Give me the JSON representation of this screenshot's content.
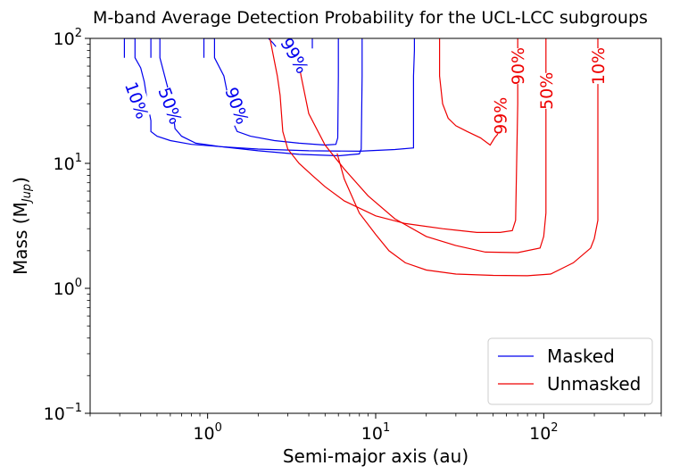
{
  "chart_data": {
    "type": "line",
    "title": "M-band Average Detection Probability for the UCL-LCC subgroups",
    "xlabel": "Semi-major axis (au)",
    "ylabel_main": "Mass (M",
    "ylabel_sub": "Jup",
    "ylabel_close": ")",
    "xscale": "log",
    "yscale": "log",
    "xlim": [
      0.2,
      500
    ],
    "ylim": [
      0.1,
      100
    ],
    "xticks": [
      {
        "value": 1,
        "base": "10",
        "exp": "0"
      },
      {
        "value": 10,
        "base": "10",
        "exp": "1"
      },
      {
        "value": 100,
        "base": "10",
        "exp": "2"
      }
    ],
    "yticks": [
      {
        "value": 0.1,
        "base": "10",
        "exp": "−1"
      },
      {
        "value": 1,
        "base": "10",
        "exp": "0"
      },
      {
        "value": 10,
        "base": "10",
        "exp": "1"
      },
      {
        "value": 100,
        "base": "10",
        "exp": "2"
      }
    ],
    "legend": {
      "placement": "lower-right",
      "entries": [
        {
          "label": "Masked",
          "color": "#0000ee"
        },
        {
          "label": "Unmasked",
          "color": "#ee0000"
        }
      ]
    },
    "series": [
      {
        "name": "Masked",
        "level": "10%",
        "color": "#0000ee",
        "label_at": [
          0.38,
          32
        ],
        "label_angle": 70,
        "x": [
          0.32,
          0.32,
          0.37,
          0.37,
          0.4,
          0.42,
          0.44,
          0.46,
          0.46,
          0.5,
          0.6,
          0.8,
          1.2,
          2.0,
          4.0,
          8.0,
          13.0,
          16.8,
          16.8,
          17.0,
          17.0
        ],
        "y": [
          70,
          100,
          100,
          70,
          58,
          45,
          30,
          22,
          18,
          16.5,
          15.2,
          14.2,
          13.6,
          13.0,
          12.6,
          12.5,
          12.9,
          13.3,
          50,
          80,
          100
        ]
      },
      {
        "name": "Masked",
        "level": "50%",
        "color": "#0000ee",
        "label_at": [
          0.6,
          29
        ],
        "label_angle": 70,
        "x": [
          0.46,
          0.46,
          0.52,
          0.52,
          0.58,
          0.62,
          0.64,
          0.7,
          0.85,
          1.2,
          2.0,
          3.5,
          6.0,
          8.0,
          8.2,
          8.3,
          8.3
        ],
        "y": [
          70,
          100,
          100,
          70,
          40,
          28,
          19,
          16.5,
          14.5,
          13.6,
          12.6,
          11.8,
          11.5,
          11.9,
          13,
          50,
          100
        ]
      },
      {
        "name": "Masked",
        "level": "90%",
        "color": "#0000ee",
        "label_at": [
          1.5,
          29
        ],
        "label_angle": 70,
        "x": [
          0.95,
          0.95,
          1.1,
          1.1,
          1.25,
          1.35,
          1.4,
          1.5,
          1.8,
          2.5,
          3.5,
          5.0,
          5.8,
          5.95,
          6.0,
          6.0
        ],
        "y": [
          70,
          100,
          100,
          70,
          50,
          30,
          22,
          18,
          16.5,
          15.2,
          14.5,
          14.0,
          14.2,
          16,
          50,
          100
        ]
      },
      {
        "name": "Masked",
        "level": "99%",
        "color": "#0000ee",
        "label_at": [
          3.3,
          73
        ],
        "label_angle": 60,
        "x": [
          2.3,
          2.45,
          2.55
        ],
        "y": [
          100,
          92,
          86
        ]
      },
      {
        "name": "Masked",
        "level": "99% (right)",
        "color": "#0000ee",
        "label_at": null,
        "label_angle": 0,
        "x": [
          4.2,
          4.2
        ],
        "y": [
          83,
          100
        ]
      },
      {
        "name": "Unmasked",
        "level": "10%",
        "color": "#ee0000",
        "label_at": [
          210,
          60
        ],
        "label_angle": -90,
        "x": [
          5.9,
          6.5,
          8.0,
          10.0,
          12.0,
          15.0,
          20.0,
          30.0,
          50.0,
          80.0,
          110.0,
          150.0,
          190.0,
          200.0,
          210.0,
          210.0,
          210.0
        ],
        "y": [
          12,
          7.5,
          4.0,
          2.7,
          2.0,
          1.6,
          1.4,
          1.3,
          1.27,
          1.26,
          1.3,
          1.6,
          2.1,
          2.5,
          3.5,
          30,
          100
        ]
      },
      {
        "name": "Unmasked",
        "level": "50%",
        "color": "#ee0000",
        "label_at": [
          103,
          38
        ],
        "label_angle": -90,
        "x": [
          3.3,
          3.6,
          4.0,
          5.0,
          6.5,
          9.0,
          13.0,
          20.0,
          30.0,
          45.0,
          70.0,
          95.0,
          100.0,
          103.0,
          103.0,
          103.0
        ],
        "y": [
          100,
          50,
          25,
          14,
          9,
          5.5,
          3.6,
          2.6,
          2.2,
          1.95,
          1.93,
          2.1,
          2.6,
          4.0,
          30,
          100
        ]
      },
      {
        "name": "Unmasked",
        "level": "90%",
        "color": "#ee0000",
        "label_at": [
          70,
          60
        ],
        "label_angle": -90,
        "x": [
          2.35,
          2.6,
          2.7,
          2.8,
          3.0,
          3.5,
          4.2,
          5.0,
          6.5,
          10.0,
          15.0,
          25.0,
          40.0,
          55.0,
          65.0,
          68.0,
          70.0,
          70.0
        ],
        "y": [
          100,
          50,
          35,
          18,
          13,
          10,
          8,
          6.5,
          5.0,
          3.8,
          3.3,
          3.0,
          2.8,
          2.8,
          2.9,
          3.5,
          30,
          100
        ]
      },
      {
        "name": "Unmasked",
        "level": "99%",
        "color": "#ee0000",
        "label_at": [
          55,
          24
        ],
        "label_angle": -90,
        "x": [
          24.0,
          24.0,
          25.0,
          27.0,
          30.0,
          35.0,
          42.0,
          48.0,
          51.0,
          53.0,
          54.0,
          54.0
        ],
        "y": [
          100,
          50,
          30,
          23,
          20,
          18,
          16,
          14,
          16,
          17,
          19,
          30
        ]
      }
    ]
  }
}
